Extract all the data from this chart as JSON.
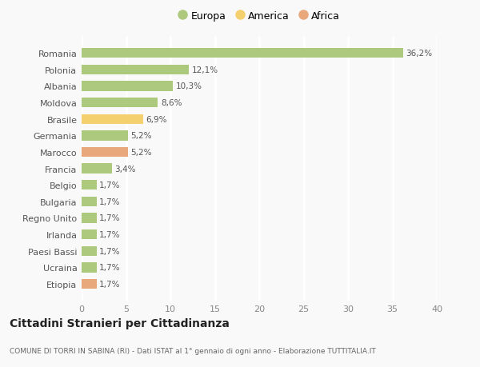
{
  "categories": [
    "Romania",
    "Polonia",
    "Albania",
    "Moldova",
    "Brasile",
    "Germania",
    "Marocco",
    "Francia",
    "Belgio",
    "Bulgaria",
    "Regno Unito",
    "Irlanda",
    "Paesi Bassi",
    "Ucraina",
    "Etiopia"
  ],
  "values": [
    36.2,
    12.1,
    10.3,
    8.6,
    6.9,
    5.2,
    5.2,
    3.4,
    1.7,
    1.7,
    1.7,
    1.7,
    1.7,
    1.7,
    1.7
  ],
  "labels": [
    "36,2%",
    "12,1%",
    "10,3%",
    "8,6%",
    "6,9%",
    "5,2%",
    "5,2%",
    "3,4%",
    "1,7%",
    "1,7%",
    "1,7%",
    "1,7%",
    "1,7%",
    "1,7%",
    "1,7%"
  ],
  "continent": [
    "Europa",
    "Europa",
    "Europa",
    "Europa",
    "America",
    "Europa",
    "Africa",
    "Europa",
    "Europa",
    "Europa",
    "Europa",
    "Europa",
    "Europa",
    "Europa",
    "Africa"
  ],
  "colors": {
    "Europa": "#adc97e",
    "America": "#f5d06e",
    "Africa": "#e8a87c"
  },
  "xlim": [
    0,
    40
  ],
  "xticks": [
    0,
    5,
    10,
    15,
    20,
    25,
    30,
    35,
    40
  ],
  "title": "Cittadini Stranieri per Cittadinanza",
  "subtitle": "COMUNE DI TORRI IN SABINA (RI) - Dati ISTAT al 1° gennaio di ogni anno - Elaborazione TUTTITALIA.IT",
  "background_color": "#f9f9f9",
  "grid_color": "#ffffff",
  "bar_height": 0.6
}
